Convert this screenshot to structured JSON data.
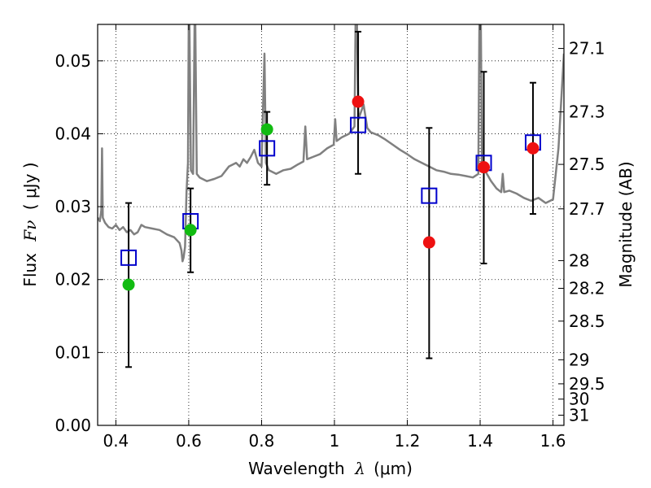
{
  "chart_data": {
    "type": "scatter",
    "title": "",
    "xlabel_prefix": "Wavelength",
    "xlabel_symbol": "λ",
    "xlabel_unit": "(μm)",
    "ylabel_prefix": "Flux",
    "ylabel_symbol": "Fν",
    "ylabel_unit": "( μJy )",
    "y2label": "Magnitude (AB)",
    "xlim": [
      0.35,
      1.63
    ],
    "ylim": [
      0.0,
      0.055
    ],
    "grid": true,
    "grid_style": "dotted",
    "x_ticks": [
      0.4,
      0.6,
      0.8,
      1.0,
      1.2,
      1.4,
      1.6
    ],
    "x_tick_labels": [
      "0.4",
      "0.6",
      "0.8",
      "1",
      "1.2",
      "1.4",
      "1.6"
    ],
    "y_ticks": [
      0.0,
      0.01,
      0.02,
      0.03,
      0.04,
      0.05
    ],
    "y_tick_labels": [
      "0.00",
      "0.01",
      "0.02",
      "0.03",
      "0.04",
      "0.05"
    ],
    "y2_ticks": [
      {
        "label": "27.1",
        "flux": 0.0517
      },
      {
        "label": "27.3",
        "flux": 0.043
      },
      {
        "label": "27.5",
        "flux": 0.0358
      },
      {
        "label": "27.7",
        "flux": 0.0297
      },
      {
        "label": "28",
        "flux": 0.0226
      },
      {
        "label": "28.2",
        "flux": 0.0188
      },
      {
        "label": "28.5",
        "flux": 0.0143
      },
      {
        "label": "29",
        "flux": 0.009
      },
      {
        "label": "29.5",
        "flux": 0.0057
      },
      {
        "label": "30",
        "flux": 0.0036
      },
      {
        "label": "31",
        "flux": 0.0014
      }
    ],
    "series": [
      {
        "kind": "model-spectrum",
        "color": "#808080",
        "points": [
          [
            0.35,
            0.0285
          ],
          [
            0.356,
            0.028
          ],
          [
            0.36,
            0.0295
          ],
          [
            0.362,
            0.038
          ],
          [
            0.364,
            0.0285
          ],
          [
            0.37,
            0.0278
          ],
          [
            0.38,
            0.0272
          ],
          [
            0.39,
            0.027
          ],
          [
            0.4,
            0.0275
          ],
          [
            0.41,
            0.0268
          ],
          [
            0.42,
            0.0272
          ],
          [
            0.43,
            0.0265
          ],
          [
            0.44,
            0.0268
          ],
          [
            0.45,
            0.0262
          ],
          [
            0.46,
            0.0265
          ],
          [
            0.47,
            0.0275
          ],
          [
            0.48,
            0.0272
          ],
          [
            0.5,
            0.027
          ],
          [
            0.52,
            0.0268
          ],
          [
            0.54,
            0.0262
          ],
          [
            0.56,
            0.0258
          ],
          [
            0.575,
            0.025
          ],
          [
            0.58,
            0.024
          ],
          [
            0.583,
            0.0225
          ],
          [
            0.586,
            0.023
          ],
          [
            0.59,
            0.0245
          ],
          [
            0.594,
            0.032
          ],
          [
            0.598,
            0.036
          ],
          [
            0.6,
            0.055
          ],
          [
            0.602,
            0.055
          ],
          [
            0.606,
            0.035
          ],
          [
            0.612,
            0.0345
          ],
          [
            0.616,
            0.055
          ],
          [
            0.618,
            0.055
          ],
          [
            0.622,
            0.0345
          ],
          [
            0.63,
            0.034
          ],
          [
            0.65,
            0.0335
          ],
          [
            0.67,
            0.0338
          ],
          [
            0.69,
            0.0342
          ],
          [
            0.71,
            0.0355
          ],
          [
            0.73,
            0.036
          ],
          [
            0.74,
            0.0355
          ],
          [
            0.75,
            0.0365
          ],
          [
            0.76,
            0.036
          ],
          [
            0.77,
            0.0368
          ],
          [
            0.78,
            0.0378
          ],
          [
            0.79,
            0.036
          ],
          [
            0.8,
            0.0355
          ],
          [
            0.808,
            0.051
          ],
          [
            0.812,
            0.036
          ],
          [
            0.82,
            0.035
          ],
          [
            0.84,
            0.0345
          ],
          [
            0.86,
            0.035
          ],
          [
            0.88,
            0.0352
          ],
          [
            0.9,
            0.0358
          ],
          [
            0.915,
            0.0362
          ],
          [
            0.92,
            0.041
          ],
          [
            0.925,
            0.0365
          ],
          [
            0.94,
            0.0368
          ],
          [
            0.96,
            0.0372
          ],
          [
            0.98,
            0.038
          ],
          [
            0.998,
            0.0385
          ],
          [
            1.002,
            0.042
          ],
          [
            1.006,
            0.039
          ],
          [
            1.02,
            0.0395
          ],
          [
            1.04,
            0.04
          ],
          [
            1.055,
            0.041
          ],
          [
            1.058,
            0.055
          ],
          [
            1.062,
            0.055
          ],
          [
            1.066,
            0.042
          ],
          [
            1.08,
            0.044
          ],
          [
            1.09,
            0.0408
          ],
          [
            1.1,
            0.0402
          ],
          [
            1.12,
            0.0398
          ],
          [
            1.14,
            0.0392
          ],
          [
            1.16,
            0.0385
          ],
          [
            1.18,
            0.0378
          ],
          [
            1.2,
            0.0372
          ],
          [
            1.22,
            0.0365
          ],
          [
            1.24,
            0.036
          ],
          [
            1.26,
            0.0355
          ],
          [
            1.28,
            0.035
          ],
          [
            1.3,
            0.0348
          ],
          [
            1.32,
            0.0345
          ],
          [
            1.34,
            0.0344
          ],
          [
            1.36,
            0.0342
          ],
          [
            1.38,
            0.034
          ],
          [
            1.395,
            0.0345
          ],
          [
            1.398,
            0.055
          ],
          [
            1.402,
            0.055
          ],
          [
            1.405,
            0.035
          ],
          [
            1.415,
            0.0348
          ],
          [
            1.43,
            0.0335
          ],
          [
            1.445,
            0.0325
          ],
          [
            1.458,
            0.032
          ],
          [
            1.462,
            0.0345
          ],
          [
            1.466,
            0.032
          ],
          [
            1.48,
            0.0322
          ],
          [
            1.5,
            0.0318
          ],
          [
            1.52,
            0.0312
          ],
          [
            1.54,
            0.0308
          ],
          [
            1.56,
            0.0312
          ],
          [
            1.58,
            0.0305
          ],
          [
            1.6,
            0.031
          ],
          [
            1.615,
            0.038
          ],
          [
            1.63,
            0.051
          ]
        ]
      },
      {
        "kind": "observed-errorbars",
        "color": "#000000",
        "points": [
          {
            "x": 0.435,
            "low": 0.008,
            "high": 0.0305
          },
          {
            "x": 0.605,
            "low": 0.021,
            "high": 0.0325
          },
          {
            "x": 0.815,
            "low": 0.033,
            "high": 0.043
          },
          {
            "x": 1.065,
            "low": 0.0345,
            "high": 0.054
          },
          {
            "x": 1.26,
            "low": 0.0092,
            "high": 0.0408
          },
          {
            "x": 1.41,
            "low": 0.0222,
            "high": 0.0485
          },
          {
            "x": 1.545,
            "low": 0.029,
            "high": 0.047
          }
        ]
      },
      {
        "kind": "model-photometry",
        "color": "#0000cc",
        "marker": "open-square",
        "points": [
          {
            "x": 0.435,
            "y": 0.023
          },
          {
            "x": 0.605,
            "y": 0.028
          },
          {
            "x": 0.815,
            "y": 0.038
          },
          {
            "x": 1.065,
            "y": 0.0412
          },
          {
            "x": 1.26,
            "y": 0.0315
          },
          {
            "x": 1.41,
            "y": 0.036
          },
          {
            "x": 1.545,
            "y": 0.0388
          }
        ]
      },
      {
        "kind": "observed-optical",
        "color": "#11bb11",
        "marker": "filled-circle",
        "points": [
          {
            "x": 0.435,
            "y": 0.0193
          },
          {
            "x": 0.605,
            "y": 0.0268
          },
          {
            "x": 0.815,
            "y": 0.0406
          }
        ]
      },
      {
        "kind": "observed-nir",
        "color": "#ee1111",
        "marker": "filled-circle",
        "points": [
          {
            "x": 1.065,
            "y": 0.0444
          },
          {
            "x": 1.26,
            "y": 0.0251
          },
          {
            "x": 1.41,
            "y": 0.0354
          },
          {
            "x": 1.545,
            "y": 0.038
          }
        ]
      }
    ]
  }
}
